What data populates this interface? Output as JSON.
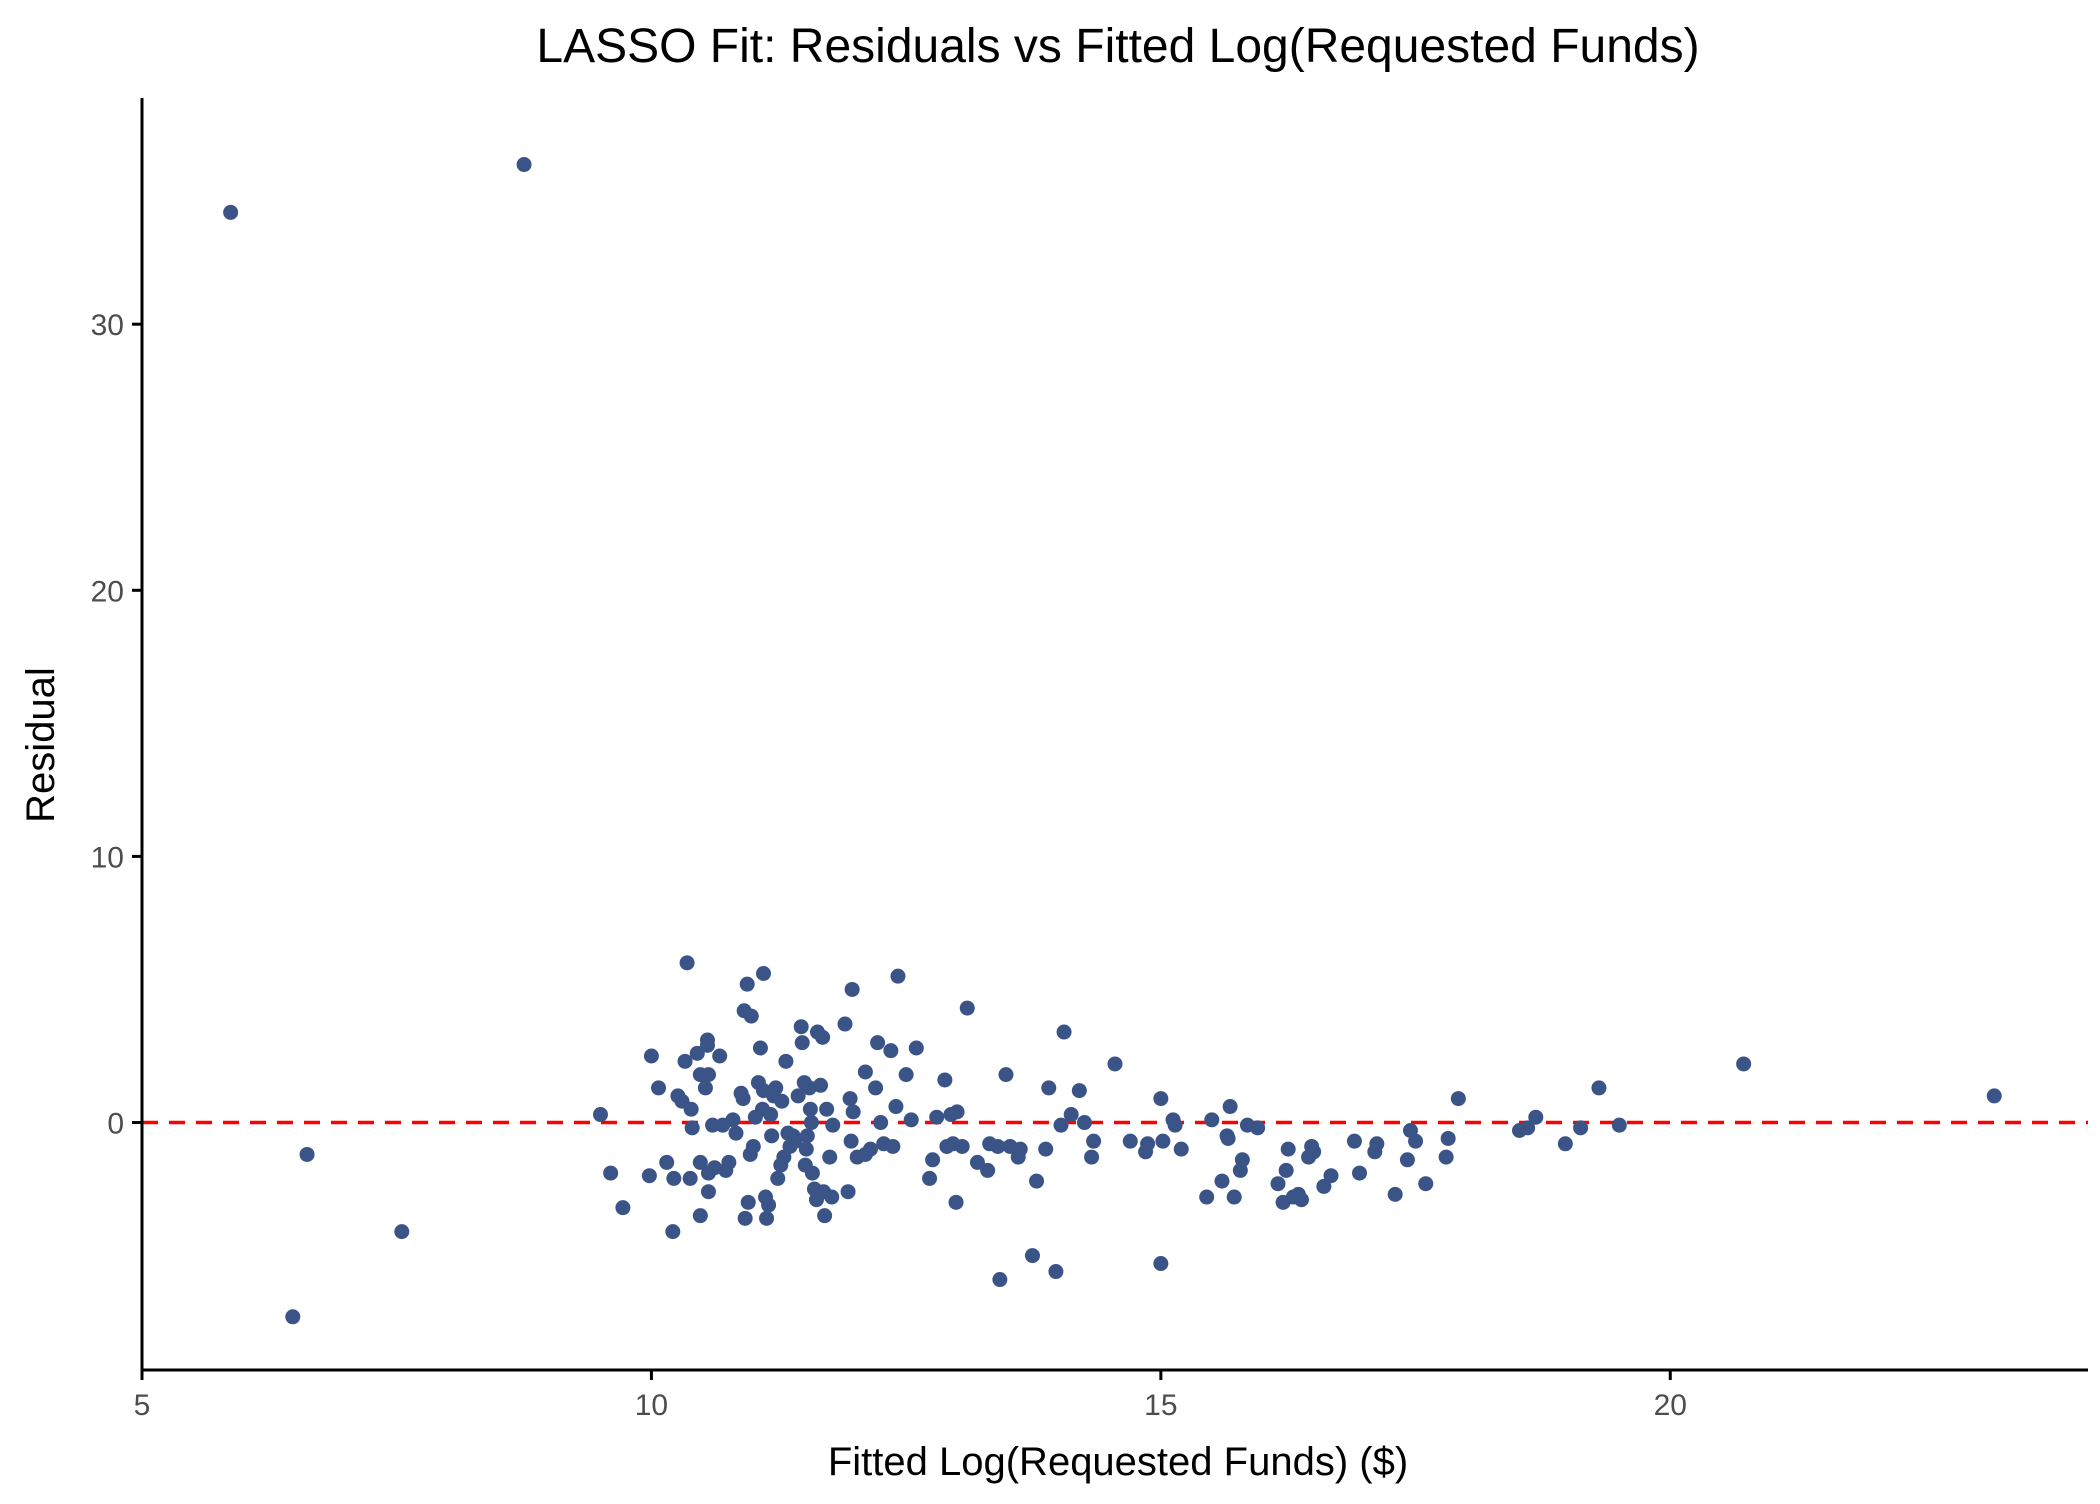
{
  "chart_data": {
    "type": "scatter",
    "title": "LASSO Fit: Residuals vs Fitted Log(Requested Funds)",
    "xlabel": "Fitted Log(Requested Funds) ($)",
    "ylabel": "Residual",
    "xlim": [
      5,
      24.1
    ],
    "ylim": [
      -9.3,
      38.5
    ],
    "xticks": [
      5,
      10,
      15,
      20
    ],
    "yticks": [
      0,
      10,
      20,
      30
    ],
    "xtick_labels": [
      "5",
      "10",
      "15",
      "20"
    ],
    "ytick_labels": [
      "0",
      "10",
      "20",
      "30"
    ],
    "grid": false,
    "reference_line": {
      "y": 0,
      "style": "dashed",
      "color": "#ff0000"
    },
    "point_color": "#3b5487",
    "series": [
      {
        "points": [
          [
            5.87,
            34.2
          ],
          [
            8.75,
            36.0
          ],
          [
            6.62,
            -1.2
          ],
          [
            6.48,
            -7.3
          ],
          [
            7.55,
            -4.1
          ],
          [
            9.5,
            0.3
          ],
          [
            9.6,
            -1.9
          ],
          [
            9.72,
            -3.2
          ],
          [
            9.98,
            -2.0
          ],
          [
            10.0,
            2.5
          ],
          [
            10.07,
            1.3
          ],
          [
            10.15,
            -1.5
          ],
          [
            10.22,
            -2.1
          ],
          [
            10.21,
            -4.1
          ],
          [
            10.26,
            1.0
          ],
          [
            10.3,
            0.8
          ],
          [
            10.33,
            2.3
          ],
          [
            10.35,
            6.0
          ],
          [
            10.38,
            -2.1
          ],
          [
            10.39,
            0.5
          ],
          [
            10.4,
            -0.2
          ],
          [
            10.45,
            2.6
          ],
          [
            10.48,
            1.8
          ],
          [
            10.48,
            -1.5
          ],
          [
            10.48,
            -3.5
          ],
          [
            10.53,
            1.3
          ],
          [
            10.55,
            3.1
          ],
          [
            10.55,
            2.9
          ],
          [
            10.56,
            1.8
          ],
          [
            10.56,
            -1.9
          ],
          [
            10.56,
            -2.6
          ],
          [
            10.6,
            -0.1
          ],
          [
            10.62,
            -1.7
          ],
          [
            10.67,
            2.5
          ],
          [
            10.7,
            -0.1
          ],
          [
            10.73,
            -1.8
          ],
          [
            10.76,
            -1.5
          ],
          [
            10.8,
            0.1
          ],
          [
            10.83,
            -0.4
          ],
          [
            10.88,
            1.1
          ],
          [
            10.9,
            0.9
          ],
          [
            10.91,
            4.2
          ],
          [
            10.92,
            -3.6
          ],
          [
            10.94,
            5.2
          ],
          [
            10.95,
            -3.0
          ],
          [
            10.97,
            -1.2
          ],
          [
            10.98,
            4.0
          ],
          [
            11.0,
            -0.9
          ],
          [
            11.02,
            0.2
          ],
          [
            11.05,
            1.5
          ],
          [
            11.07,
            2.8
          ],
          [
            11.09,
            0.5
          ],
          [
            11.1,
            5.6
          ],
          [
            11.1,
            1.2
          ],
          [
            11.12,
            -2.8
          ],
          [
            11.13,
            -3.6
          ],
          [
            11.15,
            -3.1
          ],
          [
            11.17,
            0.3
          ],
          [
            11.18,
            -0.5
          ],
          [
            11.2,
            1.0
          ],
          [
            11.22,
            1.3
          ],
          [
            11.24,
            -2.1
          ],
          [
            11.27,
            -1.6
          ],
          [
            11.28,
            0.8
          ],
          [
            11.3,
            -1.3
          ],
          [
            11.32,
            2.3
          ],
          [
            11.34,
            -0.4
          ],
          [
            11.36,
            -0.9
          ],
          [
            11.39,
            -0.5
          ],
          [
            11.41,
            -0.7
          ],
          [
            11.44,
            1.0
          ],
          [
            11.47,
            3.6
          ],
          [
            11.48,
            3.0
          ],
          [
            11.5,
            1.5
          ],
          [
            11.51,
            -1.6
          ],
          [
            11.52,
            -1.0
          ],
          [
            11.53,
            -0.5
          ],
          [
            11.55,
            1.3
          ],
          [
            11.56,
            0.5
          ],
          [
            11.57,
            0.0
          ],
          [
            11.58,
            -1.9
          ],
          [
            11.6,
            -2.5
          ],
          [
            11.62,
            -2.9
          ],
          [
            11.63,
            3.4
          ],
          [
            11.66,
            1.4
          ],
          [
            11.68,
            3.2
          ],
          [
            11.69,
            -2.6
          ],
          [
            11.7,
            -3.5
          ],
          [
            11.72,
            0.5
          ],
          [
            11.75,
            -1.3
          ],
          [
            11.77,
            -2.8
          ],
          [
            11.78,
            -0.1
          ],
          [
            11.9,
            3.7
          ],
          [
            11.93,
            -2.6
          ],
          [
            11.95,
            0.9
          ],
          [
            11.96,
            -0.7
          ],
          [
            11.97,
            5.0
          ],
          [
            11.98,
            0.4
          ],
          [
            12.02,
            -1.3
          ],
          [
            12.1,
            1.9
          ],
          [
            12.1,
            -1.2
          ],
          [
            12.15,
            -1.0
          ],
          [
            12.2,
            1.3
          ],
          [
            12.22,
            3.0
          ],
          [
            12.25,
            0.0
          ],
          [
            12.28,
            -0.8
          ],
          [
            12.35,
            2.7
          ],
          [
            12.37,
            -0.9
          ],
          [
            12.4,
            0.6
          ],
          [
            12.42,
            5.5
          ],
          [
            12.5,
            1.8
          ],
          [
            12.55,
            0.1
          ],
          [
            12.6,
            2.8
          ],
          [
            12.73,
            -2.1
          ],
          [
            12.76,
            -1.4
          ],
          [
            12.8,
            0.2
          ],
          [
            12.88,
            1.6
          ],
          [
            12.9,
            -0.9
          ],
          [
            12.94,
            0.3
          ],
          [
            12.96,
            -0.8
          ],
          [
            12.99,
            -3.0
          ],
          [
            13.0,
            0.4
          ],
          [
            13.05,
            -0.9
          ],
          [
            13.1,
            4.3
          ],
          [
            13.2,
            -1.5
          ],
          [
            13.3,
            -1.8
          ],
          [
            13.32,
            -0.8
          ],
          [
            13.4,
            -0.9
          ],
          [
            13.42,
            -5.9
          ],
          [
            13.48,
            1.8
          ],
          [
            13.52,
            -0.9
          ],
          [
            13.6,
            -1.3
          ],
          [
            13.62,
            -1.0
          ],
          [
            13.74,
            -5.0
          ],
          [
            13.78,
            -2.2
          ],
          [
            13.87,
            -1.0
          ],
          [
            13.9,
            1.3
          ],
          [
            13.97,
            -5.6
          ],
          [
            14.02,
            -0.1
          ],
          [
            14.05,
            3.4
          ],
          [
            14.12,
            0.3
          ],
          [
            14.2,
            1.2
          ],
          [
            14.25,
            0.0
          ],
          [
            14.32,
            -1.3
          ],
          [
            14.34,
            -0.7
          ],
          [
            14.55,
            2.2
          ],
          [
            14.7,
            -0.7
          ],
          [
            14.85,
            -1.1
          ],
          [
            14.87,
            -0.8
          ],
          [
            15.0,
            0.9
          ],
          [
            15.0,
            -5.3
          ],
          [
            15.02,
            -0.7
          ],
          [
            15.12,
            0.1
          ],
          [
            15.14,
            -0.1
          ],
          [
            15.2,
            -1.0
          ],
          [
            15.45,
            -2.8
          ],
          [
            15.5,
            0.1
          ],
          [
            15.6,
            -2.2
          ],
          [
            15.65,
            -0.5
          ],
          [
            15.66,
            -0.6
          ],
          [
            15.68,
            0.6
          ],
          [
            15.72,
            -2.8
          ],
          [
            15.78,
            -1.8
          ],
          [
            15.8,
            -1.4
          ],
          [
            15.85,
            -0.1
          ],
          [
            15.95,
            -0.2
          ],
          [
            16.15,
            -2.3
          ],
          [
            16.2,
            -3.0
          ],
          [
            16.23,
            -1.8
          ],
          [
            16.25,
            -1.0
          ],
          [
            16.3,
            -2.8
          ],
          [
            16.35,
            -2.7
          ],
          [
            16.38,
            -2.9
          ],
          [
            16.45,
            -1.3
          ],
          [
            16.48,
            -0.9
          ],
          [
            16.5,
            -1.1
          ],
          [
            16.6,
            -2.4
          ],
          [
            16.67,
            -2.0
          ],
          [
            16.9,
            -0.7
          ],
          [
            16.95,
            -1.9
          ],
          [
            17.1,
            -1.1
          ],
          [
            17.12,
            -0.8
          ],
          [
            17.3,
            -2.7
          ],
          [
            17.42,
            -1.4
          ],
          [
            17.45,
            -0.3
          ],
          [
            17.5,
            -0.7
          ],
          [
            17.6,
            -2.3
          ],
          [
            17.8,
            -1.3
          ],
          [
            17.82,
            -0.6
          ],
          [
            17.92,
            0.9
          ],
          [
            18.52,
            -0.3
          ],
          [
            18.6,
            -0.2
          ],
          [
            18.68,
            0.2
          ],
          [
            18.97,
            -0.8
          ],
          [
            19.12,
            -0.2
          ],
          [
            19.3,
            1.3
          ],
          [
            19.5,
            -0.1
          ],
          [
            20.72,
            2.2
          ],
          [
            23.18,
            1.0
          ]
        ]
      }
    ]
  }
}
